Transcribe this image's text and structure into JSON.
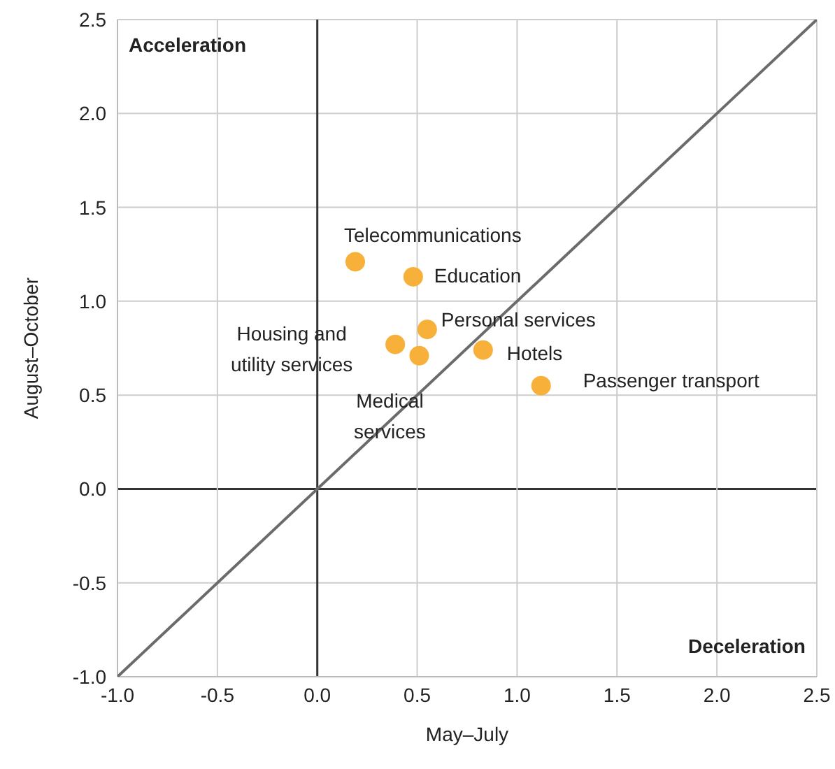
{
  "chart_data": {
    "type": "scatter",
    "xlabel": "May–July",
    "ylabel": "August–October",
    "xlim": [
      -1,
      2.5
    ],
    "ylim": [
      -1,
      2.5
    ],
    "xticks": [
      {
        "value": -1,
        "label": "-1.0"
      },
      {
        "value": -0.5,
        "label": "-0.5"
      },
      {
        "value": 0,
        "label": "0.0"
      },
      {
        "value": 0.5,
        "label": "0.5"
      },
      {
        "value": 1,
        "label": "1.0"
      },
      {
        "value": 1.5,
        "label": "1.5"
      },
      {
        "value": 2,
        "label": "2.0"
      },
      {
        "value": 2.5,
        "label": "2.5"
      }
    ],
    "yticks": [
      {
        "value": -1,
        "label": "-1.0"
      },
      {
        "value": -0.5,
        "label": "-0.5"
      },
      {
        "value": 0,
        "label": "0.0"
      },
      {
        "value": 0.5,
        "label": "0.5"
      },
      {
        "value": 1,
        "label": "1.0"
      },
      {
        "value": 1.5,
        "label": "1.5"
      },
      {
        "value": 2,
        "label": "2.0"
      },
      {
        "value": 2.5,
        "label": "2.5"
      }
    ],
    "grid": true,
    "legend": false,
    "marker": "circle",
    "series": [
      {
        "name": "Telecommunications",
        "color": "#f7b13b",
        "x": [
          0.19
        ],
        "values": [
          1.21
        ]
      },
      {
        "name": "Education",
        "color": "#f7b13b",
        "x": [
          0.48
        ],
        "values": [
          1.13
        ]
      },
      {
        "name": "Personal services",
        "color": "#f7b13b",
        "x": [
          0.55
        ],
        "values": [
          0.85
        ]
      },
      {
        "name": "Housing and utility services",
        "color": "#f7b13b",
        "x": [
          0.39
        ],
        "values": [
          0.77
        ]
      },
      {
        "name": "Medical services",
        "color": "#f7b13b",
        "x": [
          0.51
        ],
        "values": [
          0.71
        ]
      },
      {
        "name": "Hotels",
        "color": "#f7b13b",
        "x": [
          0.83
        ],
        "values": [
          0.74
        ]
      },
      {
        "name": "Passenger transport",
        "color": "#f7b13b",
        "x": [
          1.12
        ],
        "values": [
          0.55
        ]
      },
      {
        "type": "line",
        "marker": "none",
        "color": "#6b6b6b",
        "x": [
          -1,
          2.5
        ],
        "values": [
          -1,
          2.5
        ]
      }
    ],
    "annotations": [
      "Acceleration",
      "Deceleration"
    ]
  }
}
